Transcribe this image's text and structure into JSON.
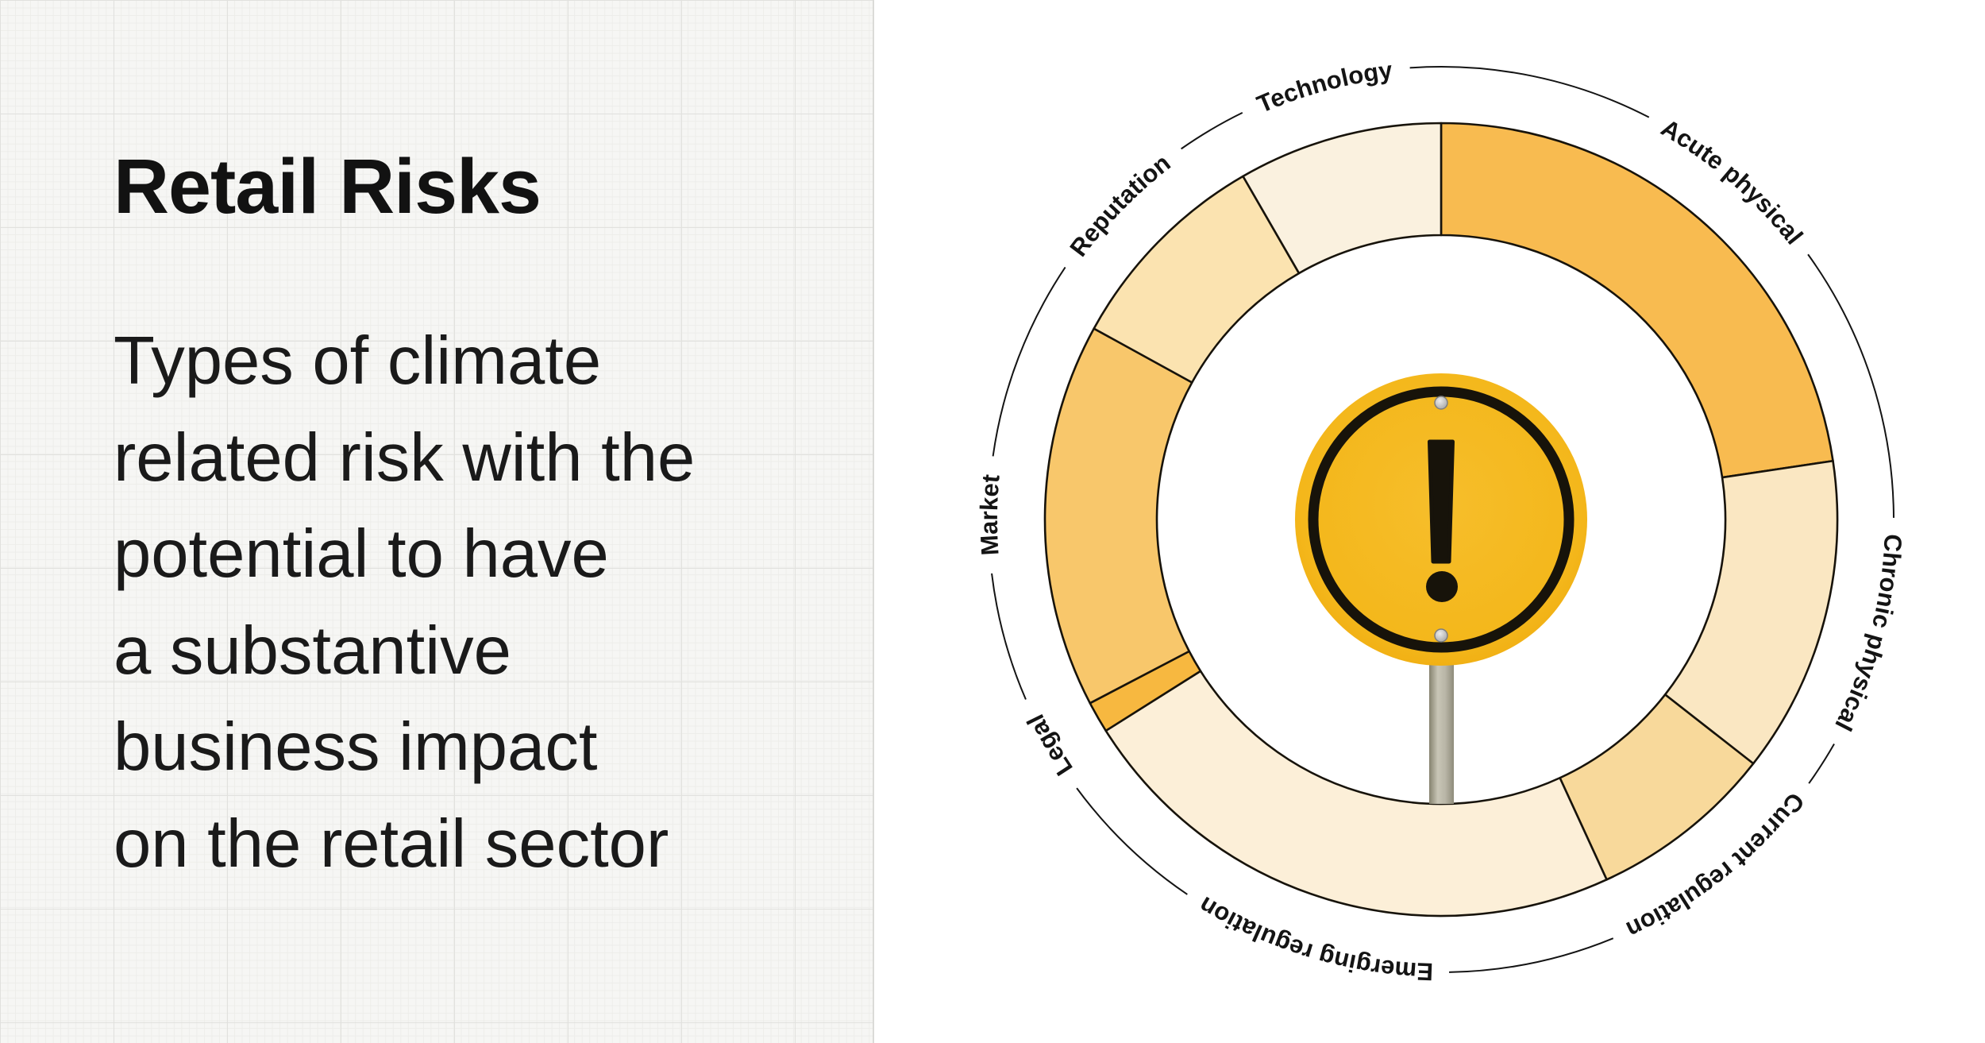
{
  "left_panel": {
    "title": "Retail Risks",
    "description_lines": [
      "Types of climate",
      "related risk with the",
      "potential to have",
      "a substantive",
      "business impact",
      "on the retail sector"
    ]
  },
  "chart_data": {
    "type": "pie",
    "variant": "donut",
    "description": "Ring chart of climate-related risk types for the retail sector, segment size = share of the ring (degrees clockwise from 12 o'clock)",
    "legend_position": "circular-labels-around-ring",
    "grid": false,
    "stroke_color": "#17130b",
    "label_color": "#141414",
    "segments": [
      {
        "label": "Acute physical",
        "start_deg": 0.0,
        "end_deg": 81.5,
        "color": "#F8BB50"
      },
      {
        "label": "Chronic physical",
        "start_deg": 81.5,
        "end_deg": 128.0,
        "color": "#FAE7C2"
      },
      {
        "label": "Current regulation",
        "start_deg": 128.0,
        "end_deg": 155.3,
        "color": "#F8D99B"
      },
      {
        "label": "Emerging regulation",
        "start_deg": 155.3,
        "end_deg": 237.8,
        "color": "#FCEFD8"
      },
      {
        "label": "Legal",
        "start_deg": 237.8,
        "end_deg": 242.4,
        "color": "#F7B840"
      },
      {
        "label": "Market",
        "start_deg": 242.4,
        "end_deg": 298.8,
        "color": "#F8C76B"
      },
      {
        "label": "Reputation",
        "start_deg": 298.8,
        "end_deg": 330.0,
        "color": "#FBE3B0"
      },
      {
        "label": "Technology",
        "start_deg": 330.0,
        "end_deg": 360.0,
        "color": "#FAF1DF"
      }
    ],
    "center_icon": {
      "name": "warning-sign",
      "glyph": "!",
      "sign_yellow": "#F4B71B",
      "sign_yellow_center": "#F6BE2B",
      "sign_black": "#17130a",
      "pole_gray": "#b9b6a7",
      "rivet_gray": "#c9c9c9"
    }
  }
}
